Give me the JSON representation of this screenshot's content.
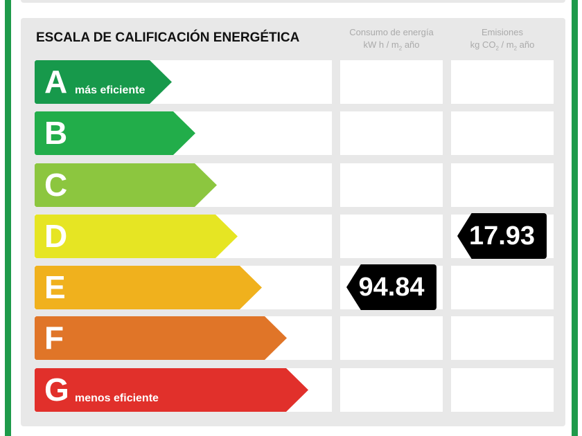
{
  "title": "ESCALA DE CALIFICACIÓN ENERGÉTICA",
  "columns": [
    {
      "line1": "Consumo de energía",
      "line2a": "kW h / m",
      "line2sub": "2",
      "line2b": " año"
    },
    {
      "line1": "Emisiones",
      "line2a": "kg CO",
      "line2sub": "2",
      "line2mid": " / m",
      "line2sub2": "2",
      "line2b": " año"
    }
  ],
  "ratings": [
    {
      "letter": "A",
      "label": "más eficiente",
      "color": "#17994b"
    },
    {
      "letter": "B",
      "label": "",
      "color": "#22ad4a"
    },
    {
      "letter": "C",
      "label": "",
      "color": "#8cc63f"
    },
    {
      "letter": "D",
      "label": "",
      "color": "#e6e523"
    },
    {
      "letter": "E",
      "label": "",
      "color": "#f0b11d"
    },
    {
      "letter": "F",
      "label": "",
      "color": "#e07528"
    },
    {
      "letter": "G",
      "label": "menos eficiente",
      "color": "#e1302b"
    }
  ],
  "consumption": {
    "value": "94.84",
    "rating": "E"
  },
  "emissions": {
    "value": "17.93",
    "rating": "D"
  }
}
